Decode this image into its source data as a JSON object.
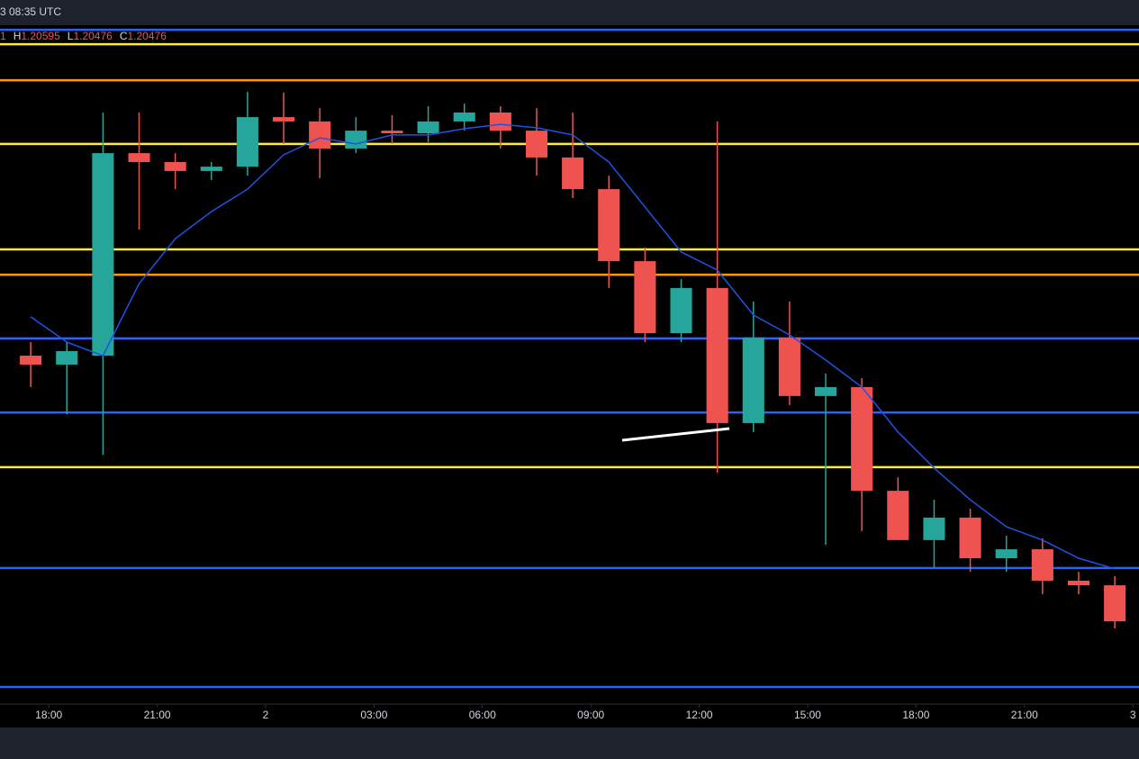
{
  "chart_data": {
    "type": "candlestick",
    "timestamp": "3 08:35 UTC",
    "ohlc_fragment": "1",
    "ohlc": [
      {
        "label": "H",
        "value": "1.20595"
      },
      {
        "label": "L",
        "value": "1.20476"
      },
      {
        "label": "C",
        "value": "1.20476"
      }
    ],
    "x": [
      -7,
      -6,
      -5,
      -4,
      -3,
      -2,
      -1,
      0,
      1,
      2,
      3,
      4,
      5,
      6,
      7,
      8,
      9,
      10,
      11,
      12,
      13,
      14,
      15,
      16,
      17,
      18,
      19,
      20,
      21,
      22,
      23
    ],
    "open": [
      1.21423,
      1.21392,
      1.21423,
      1.22126,
      1.22095,
      1.22064,
      1.22079,
      1.22251,
      1.22236,
      1.22142,
      1.22204,
      1.22195,
      1.22236,
      1.22267,
      1.22204,
      1.22111,
      1.22001,
      1.21751,
      1.21501,
      1.21658,
      1.21189,
      1.21486,
      1.21283,
      1.21314,
      1.20954,
      1.20783,
      1.20861,
      1.2072,
      1.20751,
      1.20642,
      1.20626
    ],
    "high": [
      1.2147,
      1.2147,
      1.22267,
      1.22267,
      1.22126,
      1.22095,
      1.22339,
      1.22336,
      1.22282,
      1.22251,
      1.22258,
      1.22289,
      1.22298,
      1.22289,
      1.22282,
      1.22267,
      1.22048,
      1.21798,
      1.21689,
      1.22236,
      1.21611,
      1.21611,
      1.21361,
      1.21345,
      1.21001,
      1.20923,
      1.20892,
      1.20798,
      1.20789,
      1.20673,
      1.20658
    ],
    "low": [
      1.21314,
      1.2122,
      1.21079,
      1.21861,
      1.22001,
      1.22033,
      1.22048,
      1.22158,
      1.22039,
      1.22126,
      1.22158,
      1.22164,
      1.22204,
      1.22142,
      1.22048,
      1.2197,
      1.21658,
      1.2147,
      1.2147,
      1.21017,
      1.21158,
      1.21251,
      1.20767,
      1.20814,
      1.20783,
      1.20689,
      1.20673,
      1.20673,
      1.20595,
      1.20595,
      1.20476
    ],
    "close": [
      1.21392,
      1.21439,
      1.22126,
      1.22095,
      1.22064,
      1.22079,
      1.22251,
      1.22236,
      1.22142,
      1.22204,
      1.22195,
      1.22236,
      1.22267,
      1.22204,
      1.22111,
      1.22001,
      1.21751,
      1.21501,
      1.21658,
      1.21189,
      1.21486,
      1.21283,
      1.21314,
      1.20954,
      1.20783,
      1.20861,
      1.2072,
      1.20751,
      1.20642,
      1.20626,
      1.20501
    ],
    "up_color": "#26a69a",
    "down_color": "#ef5350",
    "ema": {
      "color": "#1e53e5",
      "values": [
        1.21558,
        1.2147,
        1.21423,
        1.21673,
        1.21829,
        1.21923,
        1.22001,
        1.2212,
        1.22179,
        1.22158,
        1.22189,
        1.22189,
        1.22211,
        1.22226,
        1.22214,
        1.22189,
        1.22095,
        1.21939,
        1.21783,
        1.2172,
        1.21564,
        1.21495,
        1.21408,
        1.21314,
        1.21158,
        1.21033,
        1.20923,
        1.20829,
        1.20783,
        1.2072,
        1.20683
      ]
    },
    "levels": [
      {
        "value": 1.22554,
        "color": "#2962ff"
      },
      {
        "value": 1.22504,
        "color": "#ffeb3b"
      },
      {
        "value": 1.22379,
        "color": "#ff9800"
      },
      {
        "value": 1.22158,
        "color": "#ffeb3b"
      },
      {
        "value": 1.21792,
        "color": "#ffeb3b"
      },
      {
        "value": 1.21704,
        "color": "#ff9800"
      },
      {
        "value": 1.21483,
        "color": "#2962ff"
      },
      {
        "value": 1.21226,
        "color": "#2962ff"
      },
      {
        "value": 1.21036,
        "color": "#ffeb3b"
      },
      {
        "value": 1.20686,
        "color": "#2962ff"
      },
      {
        "value": 1.20273,
        "color": "#2962ff"
      }
    ],
    "xlim": [
      -7.35,
      24.17
    ],
    "xticks": [
      {
        "value": -6,
        "label": "18:00"
      },
      {
        "value": -3,
        "label": "21:00"
      },
      {
        "value": 0,
        "label": "2"
      },
      {
        "value": 3,
        "label": "03:00"
      },
      {
        "value": 6,
        "label": "06:00"
      },
      {
        "value": 9,
        "label": "09:00"
      },
      {
        "value": 12,
        "label": "12:00"
      },
      {
        "value": 15,
        "label": "15:00"
      },
      {
        "value": 18,
        "label": "18:00"
      },
      {
        "value": 21,
        "label": "21:00"
      },
      {
        "value": 24,
        "label": "3"
      }
    ],
    "ylim": [
      1.2022,
      1.2257
    ]
  }
}
